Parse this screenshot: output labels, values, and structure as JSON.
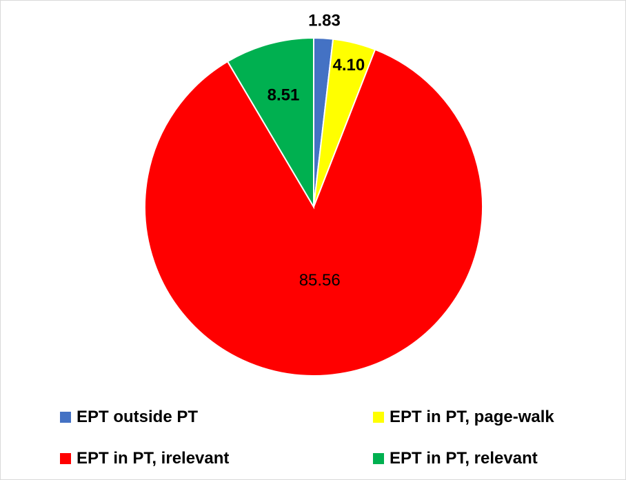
{
  "chart_data": {
    "type": "pie",
    "categories": [
      "EPT outside PT",
      "EPT in PT, page-walk",
      "EPT in PT, irelevant",
      "EPT in PT, relevant"
    ],
    "values": [
      1.83,
      4.1,
      85.56,
      8.51
    ],
    "value_labels": [
      "1.83",
      "4.10",
      "85.56",
      "8.51"
    ],
    "colors": [
      "#4472C4",
      "#FFFF00",
      "#FF0000",
      "#00B050"
    ],
    "start_angle_deg": 0,
    "direction": "clockwise",
    "legend_position": "bottom",
    "title": ""
  }
}
